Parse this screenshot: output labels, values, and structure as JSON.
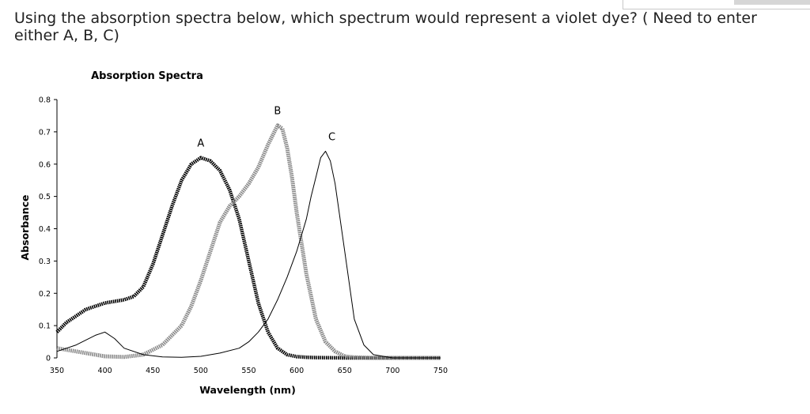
{
  "question": {
    "text": "Using the absorption spectra below, which spectrum would represent a violet dye? ( Need to enter either A, B, C)"
  },
  "chart_data": {
    "type": "line",
    "title": "Absorption Spectra",
    "xlabel": "Wavelength (nm)",
    "ylabel": "Absorbance",
    "xlim": [
      350,
      750
    ],
    "ylim": [
      0,
      0.8
    ],
    "x_ticks": [
      "350",
      "400",
      "450",
      "500",
      "550",
      "600",
      "650",
      "700",
      "750"
    ],
    "y_ticks": [
      "0",
      "0.1",
      "0.2",
      "0.3",
      "0.4",
      "0.5",
      "0.6",
      "0.7",
      "0.8"
    ],
    "grid": false,
    "series": [
      {
        "name": "A",
        "style": "thick-black-dotted",
        "color": "#000000",
        "x": [
          350,
          360,
          370,
          380,
          390,
          400,
          410,
          420,
          430,
          440,
          450,
          460,
          470,
          480,
          490,
          500,
          510,
          520,
          530,
          540,
          550,
          560,
          570,
          580,
          590,
          600,
          610,
          620,
          650,
          700,
          750
        ],
        "y": [
          0.08,
          0.11,
          0.13,
          0.15,
          0.16,
          0.17,
          0.175,
          0.18,
          0.19,
          0.22,
          0.29,
          0.38,
          0.47,
          0.55,
          0.6,
          0.62,
          0.61,
          0.58,
          0.52,
          0.43,
          0.3,
          0.17,
          0.08,
          0.03,
          0.01,
          0.004,
          0.002,
          0.001,
          0.0,
          0.0,
          0.0
        ]
      },
      {
        "name": "B",
        "style": "thick-gray",
        "color": "#8a8a8a",
        "x": [
          350,
          370,
          400,
          420,
          440,
          460,
          480,
          490,
          500,
          510,
          520,
          530,
          540,
          550,
          560,
          570,
          580,
          585,
          590,
          595,
          600,
          610,
          620,
          630,
          640,
          650,
          660,
          680,
          700,
          750
        ],
        "y": [
          0.03,
          0.02,
          0.005,
          0.003,
          0.01,
          0.04,
          0.1,
          0.16,
          0.24,
          0.33,
          0.42,
          0.47,
          0.5,
          0.54,
          0.59,
          0.66,
          0.72,
          0.71,
          0.65,
          0.56,
          0.45,
          0.26,
          0.12,
          0.05,
          0.02,
          0.005,
          0.002,
          0.0,
          0.0,
          0.0
        ]
      },
      {
        "name": "C",
        "style": "thin-black",
        "color": "#000000",
        "x": [
          350,
          370,
          390,
          400,
          410,
          420,
          440,
          460,
          480,
          500,
          520,
          540,
          550,
          560,
          570,
          580,
          590,
          600,
          610,
          615,
          620,
          625,
          630,
          635,
          640,
          650,
          660,
          670,
          680,
          700,
          750
        ],
        "y": [
          0.02,
          0.04,
          0.07,
          0.08,
          0.06,
          0.03,
          0.01,
          0.003,
          0.002,
          0.005,
          0.015,
          0.03,
          0.05,
          0.08,
          0.12,
          0.18,
          0.25,
          0.33,
          0.43,
          0.5,
          0.56,
          0.62,
          0.64,
          0.61,
          0.54,
          0.33,
          0.12,
          0.04,
          0.01,
          0.0,
          0.0
        ]
      }
    ]
  }
}
